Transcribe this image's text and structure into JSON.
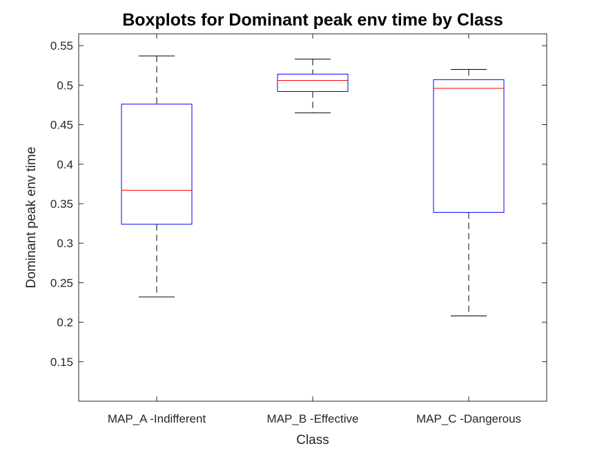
{
  "chart_data": {
    "type": "boxplot",
    "title": "Boxplots for Dominant peak env time by Class",
    "xlabel": "Class",
    "ylabel": "Dominant peak env time",
    "ylim": [
      0.1,
      0.565
    ],
    "yticks": [
      0.15,
      0.2,
      0.25,
      0.3,
      0.35,
      0.4,
      0.45,
      0.5,
      0.55
    ],
    "categories": [
      "MAP_A -Indifferent",
      "MAP_B -Effective",
      "MAP_C -Dangerous"
    ],
    "boxes": [
      {
        "category": "MAP_A -Indifferent",
        "whisker_low": 0.232,
        "q1": 0.324,
        "median": 0.367,
        "q3": 0.476,
        "whisker_high": 0.537
      },
      {
        "category": "MAP_B -Effective",
        "whisker_low": 0.465,
        "q1": 0.492,
        "median": 0.506,
        "q3": 0.514,
        "whisker_high": 0.533
      },
      {
        "category": "MAP_C -Dangerous",
        "whisker_low": 0.208,
        "q1": 0.339,
        "median": 0.496,
        "q3": 0.507,
        "whisker_high": 0.52
      }
    ],
    "grid": false,
    "colors": {
      "box": "#0000ff",
      "median": "#ff0000",
      "whisker": "#000000",
      "axis": "#262626"
    }
  }
}
